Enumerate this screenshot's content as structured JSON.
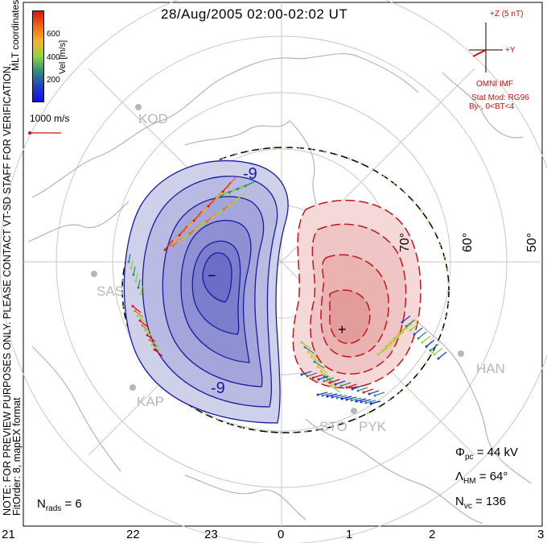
{
  "title": "28/Aug/2005 02:00-02:02 UT",
  "side_notes": {
    "preview": "NOTE: FOR PREVIEW PURPOSES ONLY. PLEASE CONTACT VT-SD STAFF FOR VERIFICATION.",
    "fit": "FitOrder: 8, mapEX format",
    "coords": "MLT coordinates"
  },
  "velocity_scale": {
    "label": "Vel [m/s]",
    "ticks": [
      "600",
      "400",
      "200"
    ],
    "colors": [
      "#e01010",
      "#f06a14",
      "#f5b22a",
      "#8ed73c",
      "#2f8b80",
      "#1f3fc4",
      "#1010e8"
    ],
    "ref_vector": "1000 m/s"
  },
  "imf": {
    "z_label": "+Z (5 nT)",
    "y_label": "+Y",
    "source": "OMNI IMF",
    "model": "Stat Mod: RG96",
    "condition": "By-, 0<BT<4"
  },
  "contour_labels": {
    "neg": "-9",
    "neg_bottom": "-9"
  },
  "extrema": {
    "min": "−",
    "max": "+"
  },
  "latitude_labels": [
    "70°",
    "60°",
    "50°"
  ],
  "stations": [
    "KOD",
    "SAS",
    "KAP",
    "STO",
    "PYK",
    "HAN"
  ],
  "stats": {
    "phi_pc": "44 kV",
    "lambda_hm": "64°",
    "n_vc": "136",
    "n_rads": "6"
  },
  "mlt_ticks": [
    "21",
    "22",
    "23",
    "0",
    "1",
    "2",
    "3"
  ],
  "colors": {
    "negative_contour": "#1a1aa0",
    "positive_contour": "#c01818",
    "negative_fill": "#5555cc",
    "positive_fill": "#e06060",
    "hmb": "#000000",
    "hmb_points": "#7ed84a",
    "coast": "#b4b4b4",
    "grid": "#c8c8c8"
  }
}
